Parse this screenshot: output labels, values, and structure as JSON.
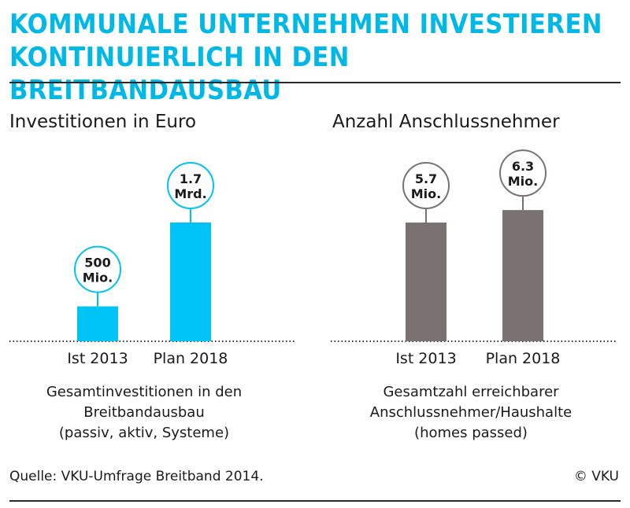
{
  "header": {
    "title_line1": "KOMMUNALE UNTERNEHMEN INVESTIEREN",
    "title_line2": "KONTINUIERLICH IN DEN BREITBANDAUSBAU"
  },
  "colors": {
    "accent": "#00c3f5",
    "title": "#00b8e6",
    "grey_bar": "#7a7270",
    "text": "#1a1a1a"
  },
  "chart_data": [
    {
      "type": "bar",
      "title": "Investitionen in Euro",
      "categories": [
        "Ist 2013",
        "Plan 2018"
      ],
      "values": [
        500,
        1700
      ],
      "unit": "Mio. Euro",
      "data_labels": [
        [
          "500",
          "Mio."
        ],
        [
          "1.7",
          "Mrd."
        ]
      ],
      "caption": [
        "Gesamtinvestitionen in den",
        "Breitbandausbau",
        "(passiv, aktiv, Systeme)"
      ],
      "color": "#00c3f5",
      "ylim": [
        0,
        3400
      ]
    },
    {
      "type": "bar",
      "title": "Anzahl Anschlussnehmer",
      "categories": [
        "Ist 2013",
        "Plan 2018"
      ],
      "values": [
        5.7,
        6.3
      ],
      "unit": "Mio.",
      "data_labels": [
        [
          "5.7",
          "Mio."
        ],
        [
          "6.3",
          "Mio."
        ]
      ],
      "caption": [
        "Gesamtzahl erreichbarer",
        "Anschlussnehmer/Haushalte",
        "(homes passed)"
      ],
      "color": "#7a7270",
      "ylim": [
        0,
        11.4
      ]
    }
  ],
  "footer": {
    "source": "Quelle: VKU-Umfrage Breitband 2014.",
    "copyright": "© VKU"
  }
}
